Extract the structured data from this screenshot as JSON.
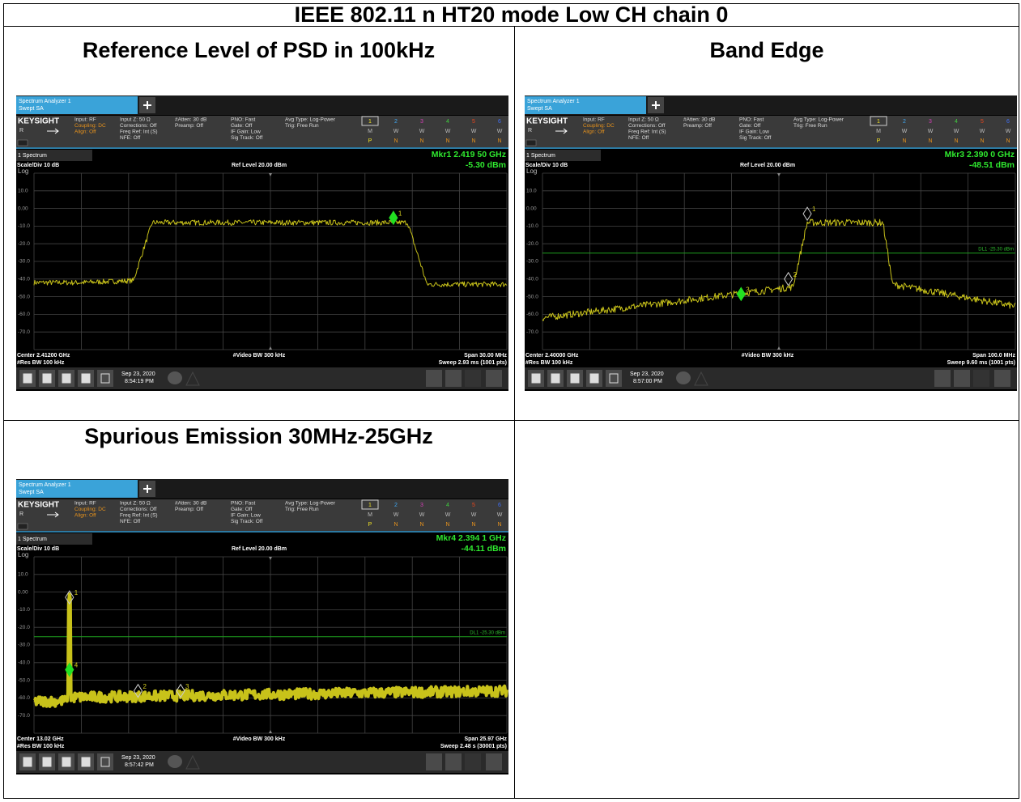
{
  "header": {
    "title": "IEEE 802.11 n HT20 mode Low CH chain 0"
  },
  "instrument": {
    "tab": [
      "Spectrum Analyzer 1",
      "Swept SA"
    ],
    "brand": "KEYSIGHT",
    "mode": "R",
    "info": [
      [
        "Input: RF",
        "Coupling: DC",
        "Align: Off"
      ],
      [
        "Input Z: 50 Ω",
        "Corrections: Off",
        "Freq Ref: Int (S)",
        "NFE: Off"
      ],
      [
        "#Atten: 30 dB",
        "Preamp: Off"
      ],
      [
        "PNO: Fast",
        "Gate: Off",
        "IF Gain: Low",
        "Sig Track: Off"
      ],
      [
        "Avg Type: Log-Power",
        "Trig: Free Run"
      ]
    ],
    "traces": [
      "1",
      "2",
      "3",
      "4",
      "5",
      "6"
    ],
    "trace_modes": [
      "M",
      "W",
      "W",
      "W",
      "W",
      "W"
    ],
    "trace_dets": [
      "P",
      "N",
      "N",
      "N",
      "N",
      "N"
    ],
    "window": "1 Spectrum",
    "scale": "Scale/Div 10 dB",
    "log": "Log",
    "ref": "Ref Level 20.00 dBm",
    "ylabels": [
      "10.0",
      "0.00",
      "-10.0",
      "-20.0",
      "-30.0",
      "-40.0",
      "-50.0",
      "-60.0",
      "-70.0"
    ],
    "rbw": "#Res BW 100 kHz",
    "vbw": "#Video BW 300 kHz",
    "date": "Sep 23, 2020"
  },
  "cells": [
    {
      "heading": "Reference Level of PSD in 100kHz",
      "screen": {
        "marker": "Mkr1  2.419 50 GHz",
        "marker_value": "-5.30 dBm",
        "center": "Center 2.41200 GHz",
        "span": "Span 30.00 MHz",
        "sweep": "Sweep 2.93 ms (1001 pts)",
        "time": "8:54:19 PM",
        "marker_labels": [
          "1"
        ]
      }
    },
    {
      "heading": "Band Edge",
      "screen": {
        "marker": "Mkr3  2.390 0 GHz",
        "marker_value": "-48.51 dBm",
        "center": "Center 2.40000 GHz",
        "span": "Span 100.0 MHz",
        "sweep": "Sweep 9.60 ms (1001 pts)",
        "time": "8:57:00 PM",
        "display_line": "DL1 -25.30 dBm",
        "marker_labels": [
          "1",
          "2",
          "3"
        ]
      }
    },
    {
      "heading": "Spurious Emission 30MHz-25GHz",
      "screen": {
        "marker": "Mkr4  2.394 1 GHz",
        "marker_value": "-44.11 dBm",
        "center": "Center 13.02 GHz",
        "span": "Span 25.97 GHz",
        "sweep": "Sweep 2.48 s (30001 pts)",
        "time": "8:57:42 PM",
        "display_line": "DL1 -25.30 dBm",
        "marker_labels": [
          "1",
          "4",
          "2",
          "3"
        ]
      }
    }
  ]
}
